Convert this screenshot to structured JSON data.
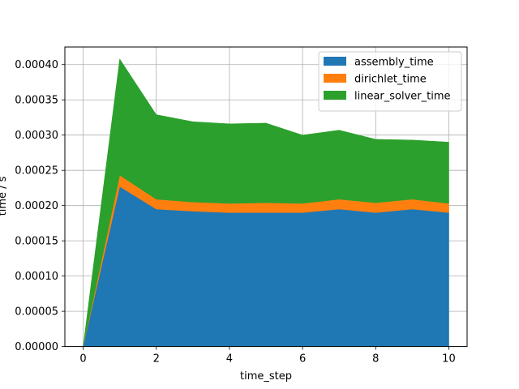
{
  "chart_data": {
    "type": "area",
    "stacked": true,
    "xlabel": "time_step",
    "ylabel": "time / s",
    "xlim": [
      -0.5,
      10.5
    ],
    "ylim": [
      0,
      0.000425
    ],
    "grid": true,
    "legend_position": "top-right",
    "x": [
      0,
      1,
      2,
      3,
      4,
      5,
      6,
      7,
      8,
      9,
      10
    ],
    "x_ticks": [
      0,
      2,
      4,
      6,
      8,
      10
    ],
    "x_tick_labels": [
      "0",
      "2",
      "4",
      "6",
      "8",
      "10"
    ],
    "y_ticks": [
      0,
      5e-05,
      0.0001,
      0.00015,
      0.0002,
      0.00025,
      0.0003,
      0.00035,
      0.0004
    ],
    "y_tick_labels": [
      "0.00000",
      "0.00005",
      "0.00010",
      "0.00015",
      "0.00020",
      "0.00025",
      "0.00030",
      "0.00035",
      "0.00040"
    ],
    "series": [
      {
        "name": "assembly_time",
        "color": "#1f77b4",
        "values": [
          0,
          0.000227,
          0.000195,
          0.000192,
          0.00019,
          0.00019,
          0.00019,
          0.000195,
          0.00019,
          0.000195,
          0.00019
        ]
      },
      {
        "name": "dirichlet_time",
        "color": "#ff7f0e",
        "values": [
          0,
          1.6e-05,
          1.4e-05,
          1.3e-05,
          1.3e-05,
          1.4e-05,
          1.3e-05,
          1.4e-05,
          1.4e-05,
          1.4e-05,
          1.3e-05
        ]
      },
      {
        "name": "linear_solver_time",
        "color": "#2ca02c",
        "values": [
          0,
          0.000165,
          0.00012,
          0.000114,
          0.000113,
          0.000113,
          9.7e-05,
          9.8e-05,
          9e-05,
          8.4e-05,
          8.7e-05
        ]
      }
    ]
  }
}
